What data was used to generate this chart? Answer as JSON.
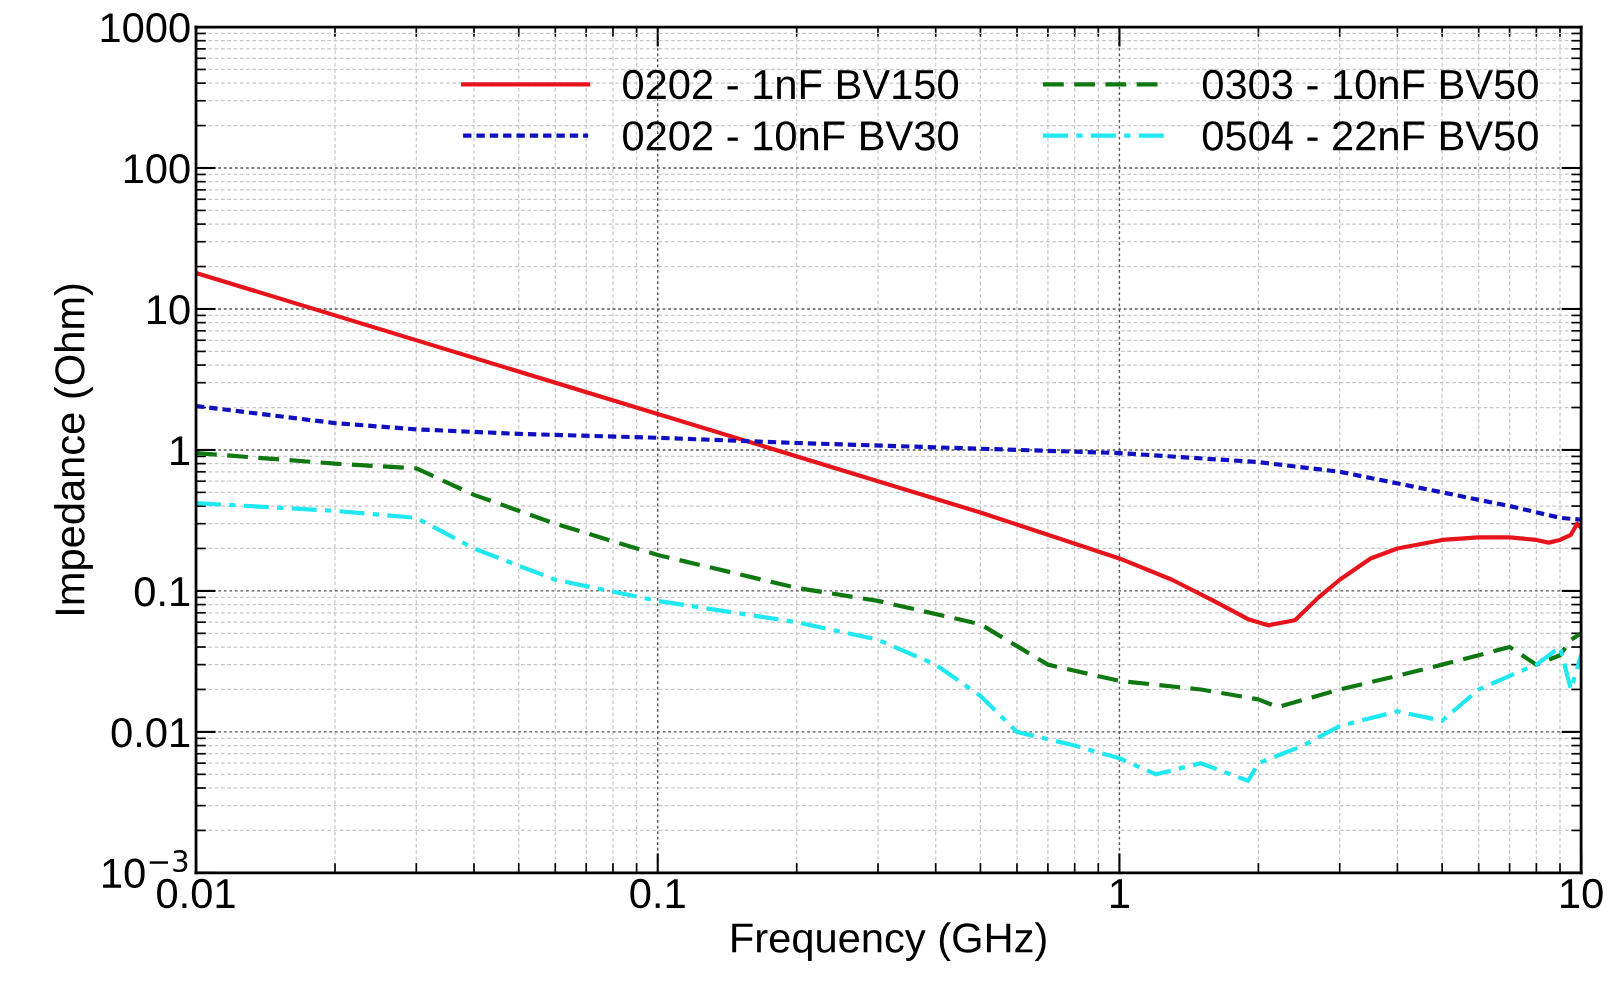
{
  "chart_data": {
    "type": "line",
    "xlabel": "Frequency (GHz)",
    "ylabel": "Impedance (Ohm)",
    "log": "xy",
    "grid": true,
    "legend": "top right",
    "xlim": [
      0.01,
      10
    ],
    "xticks": [
      0.01,
      0.1,
      1,
      10
    ],
    "ylim": [
      0.001,
      1000
    ],
    "yticks": [
      {
        "value": 0.001,
        "label": "10$^{−3}$"
      },
      0.01,
      0.1,
      1,
      10,
      100,
      1000
    ],
    "series": [
      {
        "name": "0202 - 1nF BV150",
        "color": "#e8141c",
        "line_style": "solid",
        "x": [
          0.01,
          0.1,
          0.3,
          0.5,
          0.7,
          1,
          1.3,
          1.6,
          1.9,
          2.1,
          2.4,
          2.7,
          3,
          3.5,
          4,
          5,
          6,
          7,
          8,
          8.5,
          9,
          9.5,
          9.8,
          10
        ],
        "values": [
          18,
          1.8,
          0.6,
          0.36,
          0.25,
          0.17,
          0.12,
          0.085,
          0.063,
          0.057,
          0.062,
          0.09,
          0.12,
          0.17,
          0.2,
          0.23,
          0.24,
          0.24,
          0.23,
          0.22,
          0.23,
          0.25,
          0.3,
          0.28
        ]
      },
      {
        "name": "0202 - 10nF BV30",
        "color": "#1010c0",
        "line_style": "dotted",
        "x": [
          0.01,
          0.02,
          0.03,
          0.05,
          0.1,
          0.2,
          0.5,
          1,
          2,
          3,
          5,
          7,
          9,
          10
        ],
        "values": [
          2.05,
          1.55,
          1.4,
          1.3,
          1.22,
          1.12,
          1.02,
          0.95,
          0.82,
          0.7,
          0.5,
          0.4,
          0.33,
          0.32
        ]
      },
      {
        "name": "0303 - 10nF BV50",
        "color": "#107810",
        "line_style": "dashed",
        "x": [
          0.01,
          0.02,
          0.03,
          0.04,
          0.06,
          0.1,
          0.2,
          0.3,
          0.5,
          0.7,
          1,
          1.5,
          2,
          2.2,
          3,
          4,
          5,
          6,
          7,
          8,
          9,
          9.5,
          10
        ],
        "values": [
          0.95,
          0.8,
          0.74,
          0.48,
          0.3,
          0.18,
          0.105,
          0.085,
          0.058,
          0.03,
          0.023,
          0.02,
          0.017,
          0.015,
          0.02,
          0.025,
          0.03,
          0.035,
          0.04,
          0.03,
          0.035,
          0.045,
          0.05
        ]
      },
      {
        "name": "0504 - 22nF BV50",
        "color": "#20e8f0",
        "line_style": "dashdot",
        "x": [
          0.01,
          0.02,
          0.03,
          0.04,
          0.06,
          0.1,
          0.2,
          0.3,
          0.4,
          0.5,
          0.6,
          0.8,
          1,
          1.2,
          1.5,
          1.9,
          2,
          2.5,
          3,
          4,
          5,
          6,
          7,
          8,
          9,
          9.5,
          10
        ],
        "values": [
          0.42,
          0.37,
          0.33,
          0.2,
          0.12,
          0.085,
          0.06,
          0.045,
          0.03,
          0.018,
          0.01,
          0.008,
          0.0065,
          0.005,
          0.006,
          0.0045,
          0.006,
          0.008,
          0.011,
          0.014,
          0.012,
          0.02,
          0.025,
          0.03,
          0.04,
          0.02,
          0.035
        ]
      }
    ]
  }
}
